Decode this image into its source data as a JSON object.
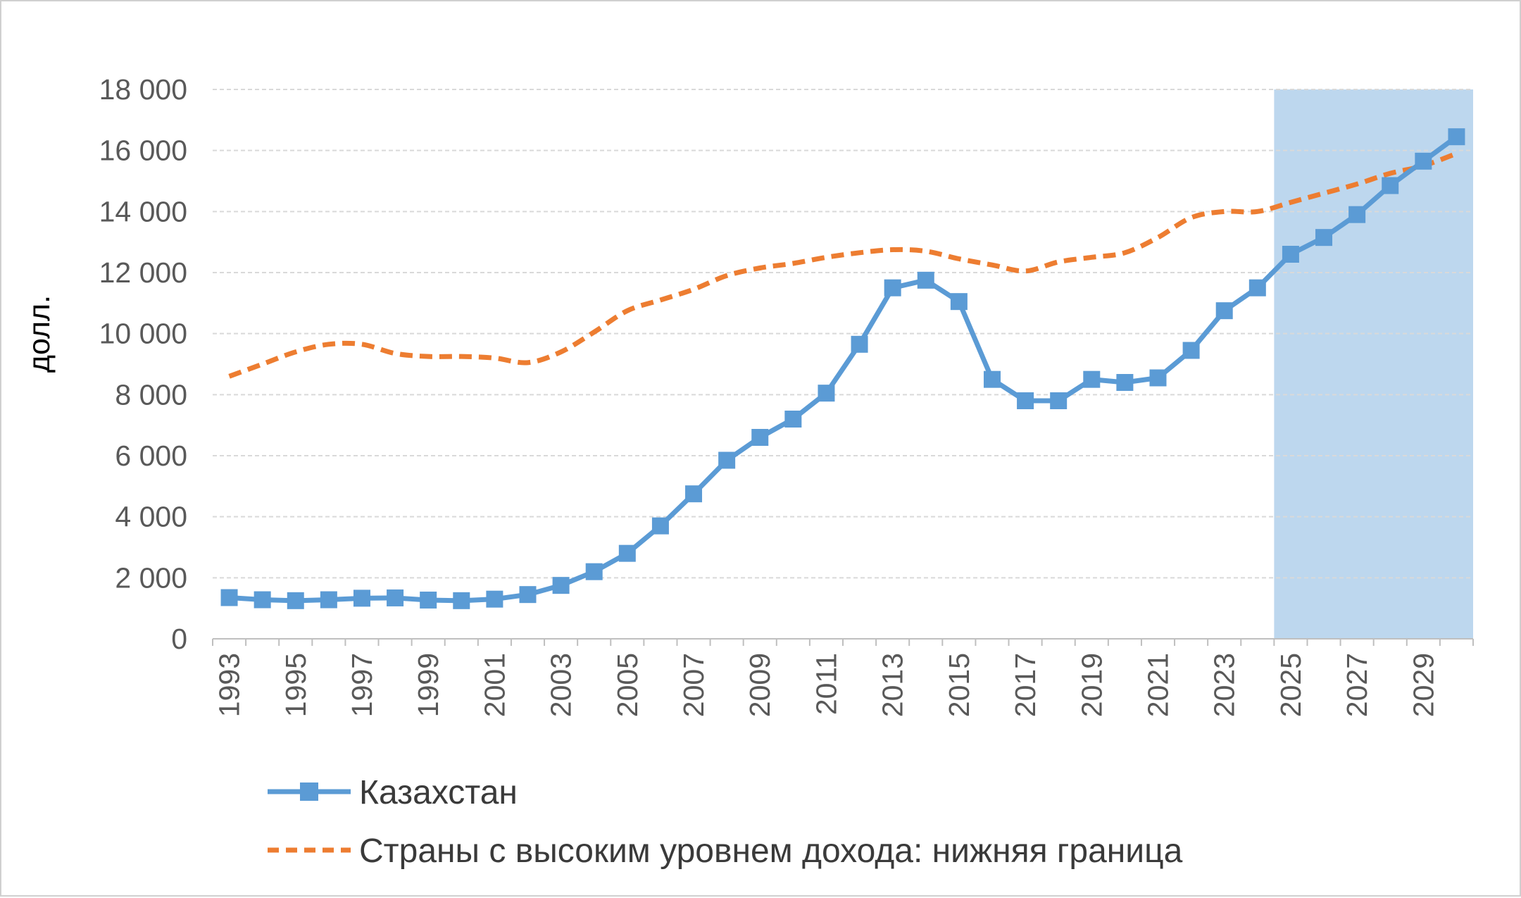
{
  "chart_data": {
    "type": "line",
    "title": "",
    "xlabel": "",
    "ylabel": "долл.",
    "ylim": [
      0,
      18000
    ],
    "yticks": [
      0,
      2000,
      4000,
      6000,
      8000,
      10000,
      12000,
      14000,
      16000,
      18000
    ],
    "ytick_labels": [
      "0",
      "2 000",
      "4 000",
      "6 000",
      "8 000",
      "10 000",
      "12 000",
      "14 000",
      "16 000",
      "18 000"
    ],
    "x": [
      1993,
      1994,
      1995,
      1996,
      1997,
      1998,
      1999,
      2000,
      2001,
      2002,
      2003,
      2004,
      2005,
      2006,
      2007,
      2008,
      2009,
      2010,
      2011,
      2012,
      2013,
      2014,
      2015,
      2016,
      2017,
      2018,
      2019,
      2020,
      2021,
      2022,
      2023,
      2024,
      2025,
      2026,
      2027,
      2028,
      2029,
      2030
    ],
    "xtick_labels": [
      "1993",
      "1995",
      "1997",
      "1999",
      "2001",
      "2003",
      "2005",
      "2007",
      "2009",
      "2011",
      "2013",
      "2015",
      "2017",
      "2019",
      "2021",
      "2023",
      "2025",
      "2027",
      "2029"
    ],
    "grid": "horizontal-dashed",
    "legend_position": "bottom",
    "forecast_shading": {
      "from": 2024.5,
      "to": 2030.5,
      "color": "#bdd7ee"
    },
    "series": [
      {
        "name": "Казахстан",
        "style": "solid-square-markers",
        "color": "#5b9bd5",
        "values": [
          1350,
          1280,
          1250,
          1280,
          1330,
          1340,
          1270,
          1250,
          1300,
          1450,
          1750,
          2200,
          2800,
          3700,
          4750,
          5850,
          6600,
          7200,
          8050,
          9650,
          11500,
          11750,
          11050,
          8500,
          7800,
          7800,
          8500,
          8400,
          8550,
          9450,
          10750,
          11500,
          12600,
          13150,
          13900,
          14850,
          15650,
          16450
        ]
      },
      {
        "name": "Страны с высоким уровнем дохода: нижняя граница",
        "style": "dashed",
        "color": "#ed7d31",
        "values": [
          8600,
          9000,
          9400,
          9650,
          9650,
          9350,
          9250,
          9250,
          9200,
          9050,
          9400,
          10050,
          10750,
          11100,
          11450,
          11900,
          12150,
          12300,
          12500,
          12650,
          12750,
          12700,
          12450,
          12250,
          12050,
          12350,
          12500,
          12650,
          13150,
          13800,
          14000,
          14000,
          14300,
          14600,
          14900,
          15250,
          15500,
          15900
        ]
      }
    ]
  }
}
